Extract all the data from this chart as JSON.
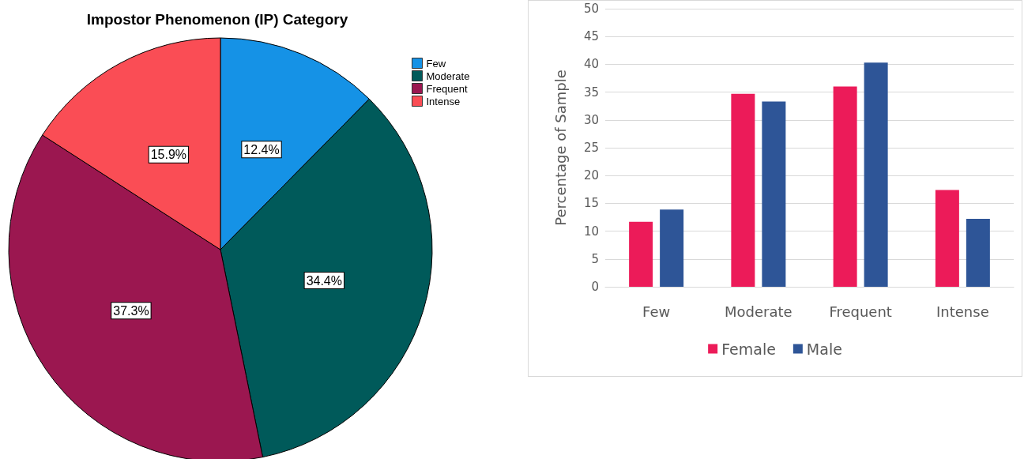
{
  "chart_data": [
    {
      "type": "pie",
      "title": "Impostor Phenomenon (IP) Category",
      "categories": [
        "Few",
        "Moderate",
        "Frequent",
        "Intense"
      ],
      "values": [
        12.4,
        34.4,
        37.3,
        15.9
      ],
      "colors": [
        "#1592e6",
        "#005a5a",
        "#9b1750",
        "#fa4d55"
      ],
      "value_labels": [
        "12.4%",
        "34.4%",
        "37.3%",
        "15.9%"
      ],
      "legend": "top right"
    },
    {
      "type": "bar",
      "ylabel": "Percentage of Sample",
      "categories": [
        "Few",
        "Moderate",
        "Frequent",
        "Intense"
      ],
      "series": [
        {
          "name": "Female",
          "color": "#ec1b59",
          "values": [
            11.7,
            34.7,
            36.0,
            17.4
          ]
        },
        {
          "name": "Male",
          "color": "#2e5597",
          "values": [
            13.9,
            33.3,
            40.3,
            12.2
          ]
        }
      ],
      "ylim": [
        0,
        50
      ],
      "yticks": [
        0,
        5,
        10,
        15,
        20,
        25,
        30,
        35,
        40,
        45,
        50
      ],
      "grid": "y",
      "legend": "bottom"
    }
  ]
}
